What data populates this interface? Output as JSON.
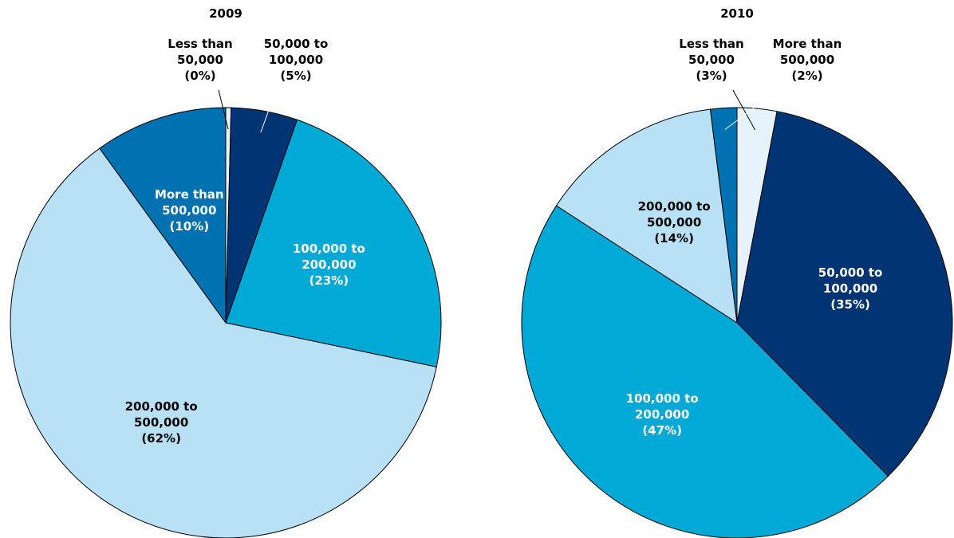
{
  "chart_data": [
    {
      "type": "pie",
      "title": "2009",
      "categories": [
        "Less than 50,000",
        "50,000 to 100,000",
        "100,000 to 200,000",
        "200,000 to 500,000",
        "More than 500,000"
      ],
      "values": [
        0.4,
        5,
        23,
        62,
        10
      ],
      "value_labels": [
        "(0%)",
        "(5%)",
        "(23%)",
        "(62%)",
        "(10%)"
      ],
      "colors": [
        "#e6f3fc",
        "#003473",
        "#00a9d6",
        "#b8e1f5",
        "#0071b1"
      ]
    },
    {
      "type": "pie",
      "title": "2010",
      "categories": [
        "Less than 50,000",
        "50,000 to 100,000",
        "100,000 to 200,000",
        "200,000 to 500,000",
        "More than 500,000"
      ],
      "values": [
        3,
        35,
        47,
        14,
        2
      ],
      "value_labels": [
        "(3%)",
        "(35%)",
        "(47%)",
        "(14%)",
        "(2%)"
      ],
      "colors": [
        "#e6f3fc",
        "#003473",
        "#00a9d6",
        "#b8e1f5",
        "#0071b1"
      ]
    }
  ]
}
